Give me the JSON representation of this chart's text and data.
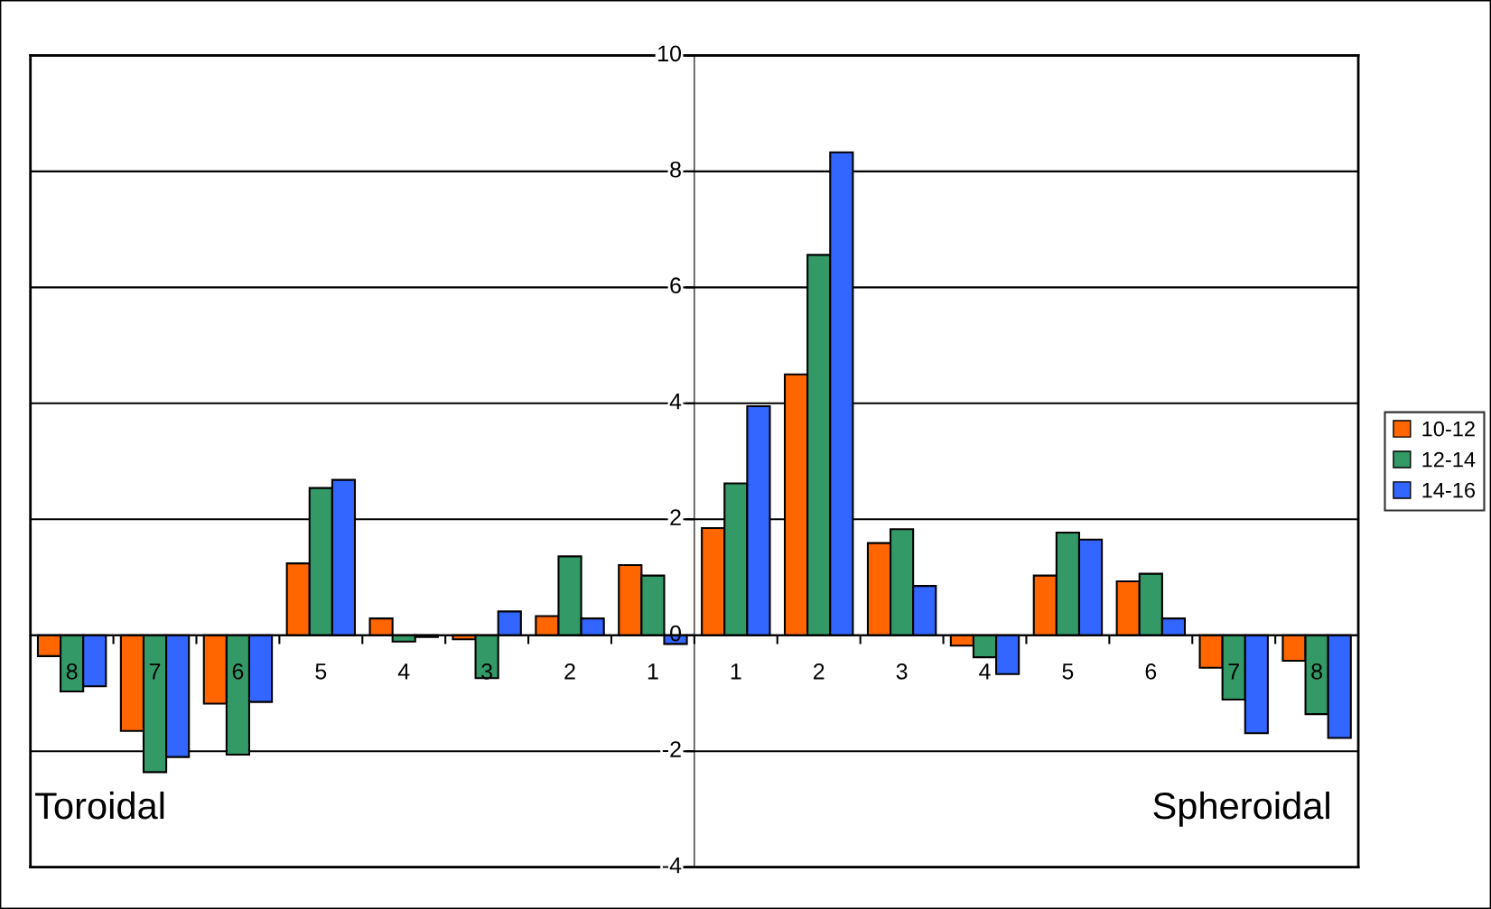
{
  "chart_data": {
    "type": "bar",
    "categories": [
      "8",
      "7",
      "6",
      "5",
      "4",
      "3",
      "2",
      "1",
      "1",
      "2",
      "3",
      "4",
      "5",
      "6",
      "7",
      "8"
    ],
    "series": [
      {
        "name": "10-12",
        "color": "#ff6600",
        "values": [
          -0.36,
          -1.65,
          -1.18,
          1.24,
          0.29,
          -0.07,
          0.33,
          1.21,
          1.85,
          4.5,
          1.59,
          -0.18,
          1.03,
          0.93,
          -0.56,
          -0.44
        ]
      },
      {
        "name": "12-14",
        "color": "#339966",
        "values": [
          -0.97,
          -2.36,
          -2.06,
          2.54,
          -0.11,
          -0.74,
          1.36,
          1.03,
          2.62,
          6.56,
          1.83,
          -0.38,
          1.77,
          1.06,
          -1.11,
          -1.36
        ]
      },
      {
        "name": "14-16",
        "color": "#3366ff",
        "values": [
          -0.88,
          -2.1,
          -1.15,
          2.68,
          -0.03,
          0.41,
          0.29,
          -0.15,
          3.95,
          8.33,
          0.85,
          -0.67,
          1.65,
          0.29,
          -1.69,
          -1.77
        ]
      }
    ],
    "ylim": [
      -4,
      10
    ],
    "yticks": [
      -4,
      -2,
      0,
      2,
      4,
      6,
      8,
      10
    ],
    "grid": "y",
    "legend": "right",
    "annotations": [
      "Toroidal",
      "Spheroidal"
    ]
  }
}
